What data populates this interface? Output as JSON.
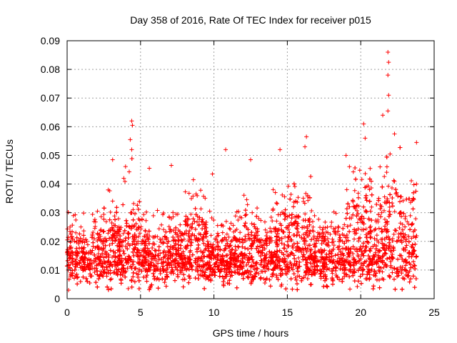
{
  "chart_data": {
    "type": "scatter",
    "title": "Day 358 of 2016, Rate Of TEC Index for receiver p015",
    "xlabel": "GPS time / hours",
    "ylabel": "ROTI / TECUs",
    "xlim": [
      0,
      25
    ],
    "ylim": [
      0,
      0.09
    ],
    "xticks": [
      0,
      5,
      10,
      15,
      20,
      25
    ],
    "yticks": [
      0,
      0.01,
      0.02,
      0.03,
      0.04,
      0.05,
      0.06,
      0.07,
      0.08,
      0.09
    ],
    "xtick_labels": [
      "0",
      "5",
      "10",
      "15",
      "20",
      "25"
    ],
    "ytick_labels": [
      "0",
      "0.01",
      "0.02",
      "0.03",
      "0.04",
      "0.05",
      "0.06",
      "0.07",
      "0.08",
      "0.09"
    ],
    "grid": true,
    "marker": "+",
    "color": "#ff0000",
    "series": [
      {
        "name": "ROTI",
        "data_range_x": [
          0,
          23.8
        ],
        "baseline_typical": [
          0.007,
          0.02
        ],
        "notable_points": [
          {
            "x": 21.85,
            "y": 0.086
          },
          {
            "x": 21.9,
            "y": 0.0825
          },
          {
            "x": 21.85,
            "y": 0.078
          },
          {
            "x": 21.9,
            "y": 0.071
          },
          {
            "x": 21.85,
            "y": 0.0655
          },
          {
            "x": 21.5,
            "y": 0.064
          },
          {
            "x": 4.4,
            "y": 0.062
          },
          {
            "x": 4.45,
            "y": 0.0605
          },
          {
            "x": 4.3,
            "y": 0.0555
          },
          {
            "x": 4.4,
            "y": 0.052
          },
          {
            "x": 20.2,
            "y": 0.061
          },
          {
            "x": 20.3,
            "y": 0.056
          },
          {
            "x": 22.3,
            "y": 0.0575
          },
          {
            "x": 16.3,
            "y": 0.0565
          },
          {
            "x": 16.2,
            "y": 0.053
          },
          {
            "x": 23.8,
            "y": 0.0545
          },
          {
            "x": 10.8,
            "y": 0.052
          },
          {
            "x": 14.5,
            "y": 0.052
          },
          {
            "x": 12.5,
            "y": 0.0485
          },
          {
            "x": 3.1,
            "y": 0.0485
          },
          {
            "x": 7.1,
            "y": 0.0465
          },
          {
            "x": 5.6,
            "y": 0.0455
          },
          {
            "x": 19.0,
            "y": 0.05
          },
          {
            "x": 22.0,
            "y": 0.0505
          },
          {
            "x": 23.8,
            "y": 0.04
          },
          {
            "x": 8.6,
            "y": 0.0415
          },
          {
            "x": 9.9,
            "y": 0.0435
          },
          {
            "x": 0.2,
            "y": 0.025
          },
          {
            "x": 0.1,
            "y": 0.003
          }
        ]
      }
    ]
  }
}
